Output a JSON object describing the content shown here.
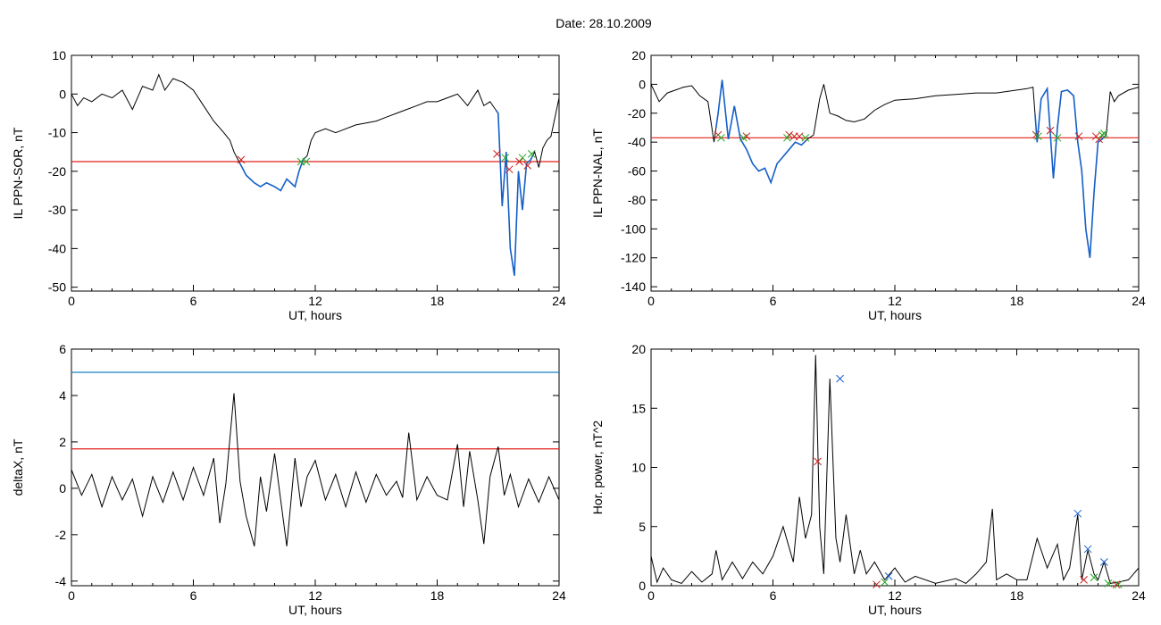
{
  "header": {
    "date_label": "Date:  28.10.2009"
  },
  "colors": {
    "trace": "#000000",
    "segment": "#1560c8",
    "threshold": "#e0201b",
    "upper_threshold": "#1a7fc0",
    "mark_red": "#cc1f1f",
    "mark_green": "#21a821",
    "mark_blue": "#1a5fd0"
  },
  "chart_data": [
    {
      "type": "line",
      "xlabel": "UT, hours",
      "ylabel": "IL PPN-SOR, nT",
      "xlim": [
        0,
        24
      ],
      "ylim": [
        -51,
        10
      ],
      "xticks": [
        0,
        6,
        12,
        18,
        24
      ],
      "yticks": [
        10,
        0,
        -10,
        -20,
        -30,
        -40,
        -50
      ],
      "threshold": -17.5,
      "x": [
        0,
        0.3,
        0.6,
        1,
        1.5,
        2,
        2.5,
        3,
        3.5,
        4,
        4.3,
        4.6,
        5,
        5.5,
        6,
        6.5,
        7,
        7.5,
        7.8,
        8,
        8.2,
        8.4,
        8.6,
        8.8,
        9,
        9.3,
        9.6,
        10,
        10.3,
        10.6,
        11,
        11.2,
        11.4,
        11.6,
        11.8,
        12,
        12.5,
        13,
        14,
        15,
        15.5,
        16,
        16.5,
        17,
        17.5,
        18,
        18.5,
        19,
        19.5,
        20,
        20.3,
        20.6,
        21,
        21.2,
        21.4,
        21.6,
        21.8,
        22,
        22.2,
        22.4,
        22.6,
        22.8,
        23,
        23.2,
        23.4,
        23.6,
        24
      ],
      "y": [
        0,
        -3,
        -1,
        -2,
        0,
        -1,
        1,
        -4,
        2,
        1,
        5,
        1,
        4,
        3,
        1,
        -3,
        -7,
        -10,
        -12,
        -15,
        -17,
        -19,
        -21,
        -22,
        -23,
        -24,
        -23,
        -24,
        -25,
        -22,
        -24,
        -20,
        -17,
        -16,
        -12,
        -10,
        -9,
        -10,
        -8,
        -7,
        -6,
        -5,
        -4,
        -3,
        -2,
        -2,
        -1,
        0,
        -3,
        1,
        -3,
        -2,
        -5,
        -29,
        -15,
        -40,
        -47,
        -20,
        -30,
        -18,
        -17,
        -15,
        -19,
        -14,
        -12,
        -11,
        -1
      ],
      "segments": [
        [
          8.3,
          11.5
        ],
        [
          20.9,
          22.7
        ]
      ],
      "red_marks": [
        [
          8.35,
          -17
        ],
        [
          20.95,
          -15.5
        ],
        [
          21.55,
          -19.5
        ],
        [
          22.05,
          -17.5
        ],
        [
          22.45,
          -18.5
        ]
      ],
      "green_marks": [
        [
          11.3,
          -17.5
        ],
        [
          11.55,
          -17.5
        ],
        [
          21.35,
          -16.5
        ],
        [
          22.2,
          -16.5
        ],
        [
          22.65,
          -15.5
        ]
      ]
    },
    {
      "type": "line",
      "xlabel": "UT, hours",
      "ylabel": "IL PPN-NAL, nT",
      "xlim": [
        0,
        24
      ],
      "ylim": [
        -143,
        20
      ],
      "xticks": [
        0,
        6,
        12,
        18,
        24
      ],
      "yticks": [
        20,
        0,
        -20,
        -40,
        -60,
        -80,
        -100,
        -120,
        -140
      ],
      "threshold": -37,
      "x": [
        0,
        0.4,
        0.8,
        1.2,
        1.6,
        2,
        2.4,
        2.8,
        3.1,
        3.3,
        3.5,
        3.8,
        4.1,
        4.4,
        4.7,
        5,
        5.3,
        5.6,
        5.9,
        6.2,
        6.5,
        6.8,
        7.1,
        7.4,
        7.7,
        8,
        8.3,
        8.5,
        8.8,
        9.2,
        9.6,
        10,
        10.5,
        11,
        11.5,
        12,
        13,
        14,
        15,
        16,
        17,
        18,
        18.5,
        18.8,
        19,
        19.2,
        19.5,
        19.8,
        20,
        20.2,
        20.5,
        20.8,
        21,
        21.2,
        21.4,
        21.6,
        21.8,
        22,
        22.2,
        22.4,
        22.6,
        22.8,
        23,
        23.5,
        24
      ],
      "y": [
        0,
        -12,
        -6,
        -4,
        -2,
        -1,
        -8,
        -12,
        -40,
        -20,
        3,
        -38,
        -15,
        -38,
        -45,
        -55,
        -60,
        -58,
        -68,
        -55,
        -50,
        -45,
        -40,
        -42,
        -38,
        -35,
        -10,
        0,
        -20,
        -22,
        -25,
        -26,
        -24,
        -18,
        -14,
        -11,
        -10,
        -8,
        -7,
        -6,
        -6,
        -4,
        -3,
        -2,
        -40,
        -10,
        -3,
        -65,
        -30,
        -5,
        -4,
        -8,
        -40,
        -60,
        -100,
        -120,
        -75,
        -40,
        -38,
        -35,
        -5,
        -12,
        -8,
        -4,
        -2
      ],
      "segments": [
        [
          3.2,
          7.6
        ],
        [
          18.9,
          22.3
        ]
      ],
      "red_marks": [
        [
          3.3,
          -35
        ],
        [
          4.7,
          -36
        ],
        [
          6.8,
          -35
        ],
        [
          7.05,
          -36
        ],
        [
          7.3,
          -36
        ],
        [
          18.95,
          -35
        ],
        [
          19.65,
          -32
        ],
        [
          21.05,
          -36
        ],
        [
          21.9,
          -36
        ],
        [
          22.05,
          -38
        ]
      ],
      "green_marks": [
        [
          3.45,
          -37
        ],
        [
          4.55,
          -37
        ],
        [
          6.7,
          -37
        ],
        [
          7.6,
          -37
        ],
        [
          19.05,
          -36
        ],
        [
          20.0,
          -37
        ],
        [
          22.2,
          -35
        ],
        [
          22.3,
          -34
        ]
      ]
    },
    {
      "type": "line",
      "xlabel": "UT, hours",
      "ylabel": "deltaX, nT",
      "xlim": [
        0,
        24
      ],
      "ylim": [
        -4.2,
        6
      ],
      "xticks": [
        0,
        6,
        12,
        18,
        24
      ],
      "yticks": [
        6,
        4,
        2,
        0,
        -2,
        -4
      ],
      "threshold": 1.7,
      "upper_threshold": 5,
      "x": [
        0,
        0.5,
        1,
        1.5,
        2,
        2.5,
        3,
        3.5,
        4,
        4.5,
        5,
        5.5,
        6,
        6.5,
        7,
        7.3,
        7.6,
        8,
        8.3,
        8.6,
        9,
        9.3,
        9.6,
        10,
        10.3,
        10.6,
        11,
        11.3,
        11.6,
        12,
        12.5,
        13,
        13.5,
        14,
        14.5,
        15,
        15.5,
        16,
        16.3,
        16.6,
        17,
        17.5,
        18,
        18.5,
        19,
        19.3,
        19.6,
        20,
        20.3,
        20.6,
        21,
        21.3,
        21.6,
        22,
        22.5,
        23,
        23.5,
        24
      ],
      "y": [
        0.8,
        -0.3,
        0.6,
        -0.8,
        0.5,
        -0.5,
        0.4,
        -1.2,
        0.5,
        -0.6,
        0.7,
        -0.5,
        0.9,
        -0.3,
        1.3,
        -1.5,
        0.2,
        4.1,
        0.3,
        -1.2,
        -2.5,
        0.5,
        -1,
        1.5,
        -0.5,
        -2.5,
        1.3,
        -0.8,
        0.5,
        1.2,
        -0.5,
        0.6,
        -0.8,
        0.7,
        -0.6,
        0.6,
        -0.3,
        0.3,
        -0.4,
        2.4,
        -0.5,
        0.5,
        -0.3,
        -0.5,
        1.9,
        -0.8,
        1.6,
        -0.5,
        -2.4,
        0.5,
        1.8,
        -0.3,
        0.6,
        -0.8,
        0.4,
        -0.6,
        0.5,
        -0.5
      ],
      "red_marks": [],
      "green_marks": []
    },
    {
      "type": "line",
      "xlabel": "UT, hours",
      "ylabel": "Hor. power, nT^2",
      "xlim": [
        0,
        24
      ],
      "ylim": [
        0,
        20
      ],
      "xticks": [
        0,
        6,
        12,
        18,
        24
      ],
      "yticks": [
        0,
        5,
        10,
        15,
        20
      ],
      "x": [
        0,
        0.3,
        0.6,
        1,
        1.5,
        2,
        2.5,
        3,
        3.2,
        3.5,
        4,
        4.5,
        5,
        5.5,
        6,
        6.5,
        7,
        7.3,
        7.6,
        7.9,
        8.1,
        8.3,
        8.5,
        8.8,
        9.1,
        9.3,
        9.6,
        10,
        10.3,
        10.6,
        11,
        11.5,
        12,
        12.5,
        13,
        14,
        15,
        15.5,
        16,
        16.5,
        16.8,
        17,
        17.5,
        18,
        18.5,
        19,
        19.5,
        20,
        20.3,
        20.6,
        21,
        21.2,
        21.5,
        21.8,
        22,
        22.3,
        22.6,
        23,
        23.5,
        24
      ],
      "y": [
        2.5,
        0.3,
        1.5,
        0.5,
        0.2,
        1.2,
        0.3,
        1,
        3,
        0.5,
        2,
        0.6,
        2,
        1,
        2.5,
        5,
        2,
        7.5,
        4,
        6,
        19.5,
        5,
        1,
        17.5,
        4,
        2,
        6,
        1,
        3,
        1,
        2,
        0.5,
        1.5,
        0.3,
        0.8,
        0.2,
        0.6,
        0.2,
        1,
        2,
        6.5,
        0.5,
        1,
        0.5,
        0.5,
        4,
        1.5,
        3.5,
        0.5,
        1.5,
        6,
        0.5,
        3,
        1,
        0.5,
        2,
        0.2,
        0.3,
        0.5,
        1.5
      ],
      "red_marks": [
        [
          8.2,
          10.5
        ],
        [
          11.1,
          0.1
        ],
        [
          21.3,
          0.5
        ],
        [
          22.9,
          0.1
        ]
      ],
      "green_marks": [
        [
          11.5,
          0.3
        ],
        [
          21.8,
          0.7
        ],
        [
          22.5,
          0.2
        ],
        [
          23.0,
          0.1
        ]
      ],
      "blue_marks": [
        [
          9.3,
          17.5
        ],
        [
          11.7,
          0.8
        ],
        [
          21.0,
          6.1
        ],
        [
          21.5,
          3.1
        ],
        [
          22.3,
          2.0
        ]
      ]
    }
  ]
}
